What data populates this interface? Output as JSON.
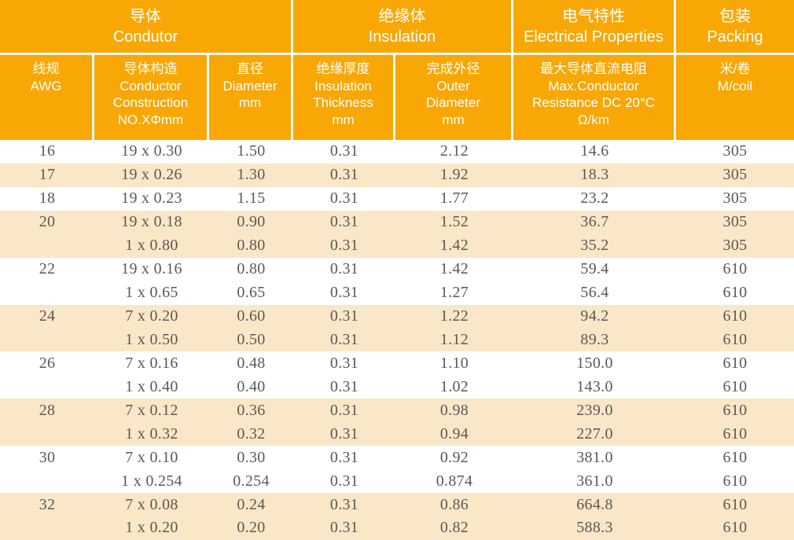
{
  "table": {
    "colors": {
      "header_orange": "#F8A705",
      "row_stripe": "#FAE7C7",
      "body_text": "#5B5857",
      "header_text": "#FFFFFF"
    },
    "groups": [
      {
        "zh": "导体",
        "en": "Condutor"
      },
      {
        "zh": "绝缘体",
        "en": "Insulation"
      },
      {
        "zh": "电气特性",
        "en": "Electrical Properties"
      },
      {
        "zh": "包装",
        "en": "Packing"
      }
    ],
    "columns": [
      {
        "lines": [
          "线规",
          "AWG"
        ]
      },
      {
        "lines": [
          "导体构造",
          "Conductor",
          "Construction",
          "NO.XΦmm"
        ]
      },
      {
        "lines": [
          "直径",
          "Diameter",
          "mm"
        ]
      },
      {
        "lines": [
          "绝缘厚度",
          "Insulation",
          "Thickness",
          "mm"
        ]
      },
      {
        "lines": [
          "完成外径",
          "Outer",
          "Diameter",
          "mm"
        ]
      },
      {
        "lines": [
          "最大导体直流电阻",
          "Max.Conductor",
          "Resistance DC 20°C",
          "Ω/km"
        ]
      },
      {
        "lines": [
          "米/卷",
          "M/coil"
        ]
      }
    ],
    "rows": [
      {
        "shaded": false,
        "cells": [
          "16",
          "19 x 0.30",
          "1.50",
          "0.31",
          "2.12",
          "14.6",
          "305"
        ]
      },
      {
        "shaded": true,
        "cells": [
          "17",
          "19 x 0.26",
          "1.30",
          "0.31",
          "1.92",
          "18.3",
          "305"
        ]
      },
      {
        "shaded": false,
        "cells": [
          "18",
          "19 x 0.23",
          "1.15",
          "0.31",
          "1.77",
          "23.2",
          "305"
        ]
      },
      {
        "shaded": true,
        "cells": [
          "20",
          "19 x 0.18",
          "0.90",
          "0.31",
          "1.52",
          "36.7",
          "305"
        ]
      },
      {
        "shaded": true,
        "cells": [
          "",
          "1 x 0.80",
          "0.80",
          "0.31",
          "1.42",
          "35.2",
          "305"
        ]
      },
      {
        "shaded": false,
        "cells": [
          "22",
          "19 x 0.16",
          "0.80",
          "0.31",
          "1.42",
          "59.4",
          "610"
        ]
      },
      {
        "shaded": false,
        "cells": [
          "",
          "1 x 0.65",
          "0.65",
          "0.31",
          "1.27",
          "56.4",
          "610"
        ]
      },
      {
        "shaded": true,
        "cells": [
          "24",
          "7 x 0.20",
          "0.60",
          "0.31",
          "1.22",
          "94.2",
          "610"
        ]
      },
      {
        "shaded": true,
        "cells": [
          "",
          "1 x 0.50",
          "0.50",
          "0.31",
          "1.12",
          "89.3",
          "610"
        ]
      },
      {
        "shaded": false,
        "cells": [
          "26",
          "7 x 0.16",
          "0.48",
          "0.31",
          "1.10",
          "150.0",
          "610"
        ]
      },
      {
        "shaded": false,
        "cells": [
          "",
          "1 x 0.40",
          "0.40",
          "0.31",
          "1.02",
          "143.0",
          "610"
        ]
      },
      {
        "shaded": true,
        "cells": [
          "28",
          "7 x 0.12",
          "0.36",
          "0.31",
          "0.98",
          "239.0",
          "610"
        ]
      },
      {
        "shaded": true,
        "cells": [
          "",
          "1 x 0.32",
          "0.32",
          "0.31",
          "0.94",
          "227.0",
          "610"
        ]
      },
      {
        "shaded": false,
        "cells": [
          "30",
          "7 x 0.10",
          "0.30",
          "0.31",
          "0.92",
          "381.0",
          "610"
        ]
      },
      {
        "shaded": false,
        "cells": [
          "",
          "1 x 0.254",
          "0.254",
          "0.31",
          "0.874",
          "361.0",
          "610"
        ]
      },
      {
        "shaded": true,
        "cells": [
          "32",
          "7 x 0.08",
          "0.24",
          "0.31",
          "0.86",
          "664.8",
          "610"
        ]
      },
      {
        "shaded": true,
        "cells": [
          "",
          "1 x 0.20",
          "0.20",
          "0.31",
          "0.82",
          "588.3",
          "610"
        ]
      }
    ],
    "column_names": [
      "awg",
      "conductor-construction",
      "diameter",
      "insulation-thickness",
      "outer-diameter",
      "max-dc-resistance",
      "meters-per-coil"
    ]
  }
}
